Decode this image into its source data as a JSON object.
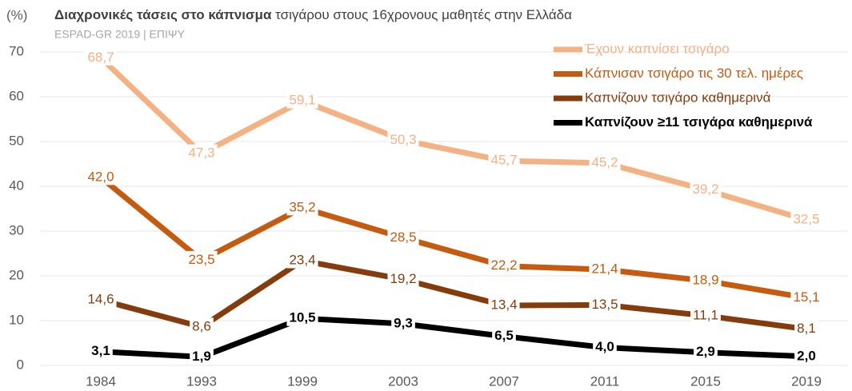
{
  "chart_data": {
    "type": "line",
    "title": "Διαχρονικές τάσεις στο κάπνισμα",
    "title_rest": "τσιγάρου στους 16χρονους μαθητές στην Ελλάδα",
    "subtitle": "ESPAD-GR 2019 | ΕΠΙΨΥ",
    "y_label": "(%)",
    "categories": [
      "1984",
      "1993",
      "1999",
      "2003",
      "2007",
      "2011",
      "2015",
      "2019"
    ],
    "ylim": [
      0,
      70
    ],
    "yticks": [
      0,
      10,
      20,
      30,
      40,
      50,
      60,
      70
    ],
    "grid": true,
    "legend": "top-right",
    "series": [
      {
        "name": "Έχουν καπνίσει τσιγάρο",
        "color": "#f4b183",
        "values": [
          68.7,
          47.3,
          59.1,
          50.3,
          45.7,
          45.2,
          39.2,
          32.5
        ],
        "value_labels": [
          "68,7",
          "47,3",
          "59,1",
          "50,3",
          "45,7",
          "45,2",
          "39,2",
          "32,5"
        ]
      },
      {
        "name": "Κάπνισαν τσιγάρο τις 30 τελ. ημέρες",
        "color": "#c55a11",
        "values": [
          42.0,
          23.5,
          35.2,
          28.5,
          22.2,
          21.4,
          18.9,
          15.1
        ],
        "value_labels": [
          "42,0",
          "23,5",
          "35,2",
          "28,5",
          "22,2",
          "21,4",
          "18,9",
          "15,1"
        ]
      },
      {
        "name": "Καπνίζουν τσιγάρο καθημερινά",
        "color": "#843c0c",
        "values": [
          14.6,
          8.6,
          23.4,
          19.2,
          13.4,
          13.5,
          11.1,
          8.1
        ],
        "value_labels": [
          "14,6",
          "8,6",
          "23,4",
          "19,2",
          "13,4",
          "13,5",
          "11,1",
          "8,1"
        ]
      },
      {
        "name": "Καπνίζουν ≥11 τσιγάρα καθημερινά",
        "color": "#000000",
        "bold": true,
        "values": [
          3.1,
          1.9,
          10.5,
          9.3,
          6.5,
          4.0,
          2.9,
          2.0
        ],
        "value_labels": [
          "3,1",
          "1,9",
          "10,5",
          "9,3",
          "6,5",
          "4,0",
          "2,9",
          "2,0"
        ]
      }
    ]
  }
}
